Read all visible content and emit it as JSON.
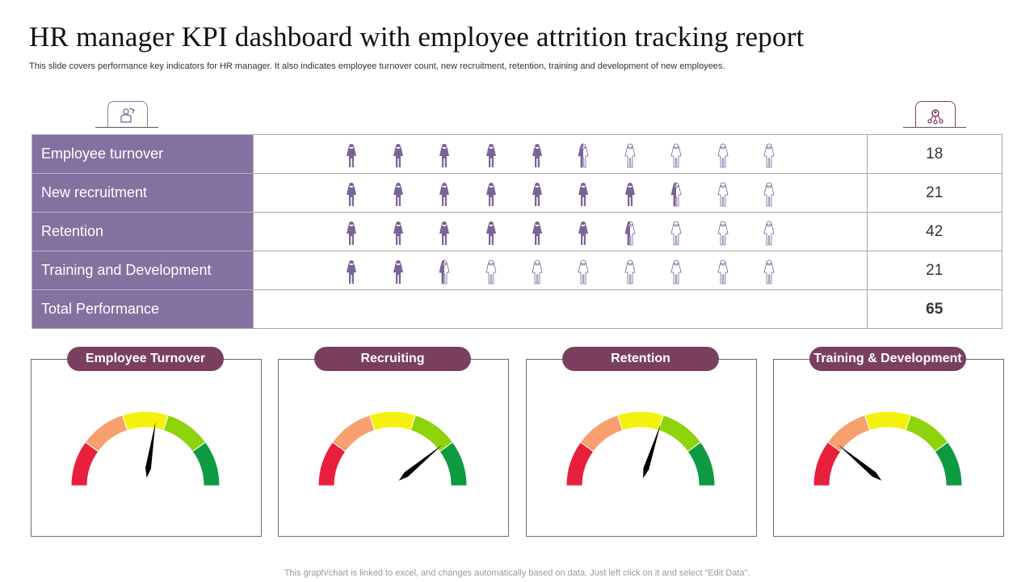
{
  "title": "HR manager KPI dashboard with employee attrition tracking report",
  "subtitle": "This slide covers performance key indicators for HR manager. It also indicates employee turnover count, new recruitment, retention, training and development of new employees.",
  "icons": {
    "left": "employee-badge-icon",
    "right": "team-network-icon"
  },
  "colors": {
    "label_bg": "#83719f",
    "figure_fill": "#7a6497",
    "pill_bg": "#7a3f5f"
  },
  "rows": [
    {
      "label": "Employee turnover",
      "value": "18",
      "filled": 5.5
    },
    {
      "label": "New recruitment",
      "value": "21",
      "filled": 7.5
    },
    {
      "label": "Retention",
      "value": "42",
      "filled": 6.5
    },
    {
      "label": "Training and Development",
      "value": "21",
      "filled": 2.5
    }
  ],
  "total": {
    "label": "Total Performance",
    "value": "65"
  },
  "figures_per_row": 10,
  "gauges": [
    {
      "title": "Employee Turnover",
      "level": 0.55
    },
    {
      "title": "Recruiting",
      "level": 0.78
    },
    {
      "title": "Retention",
      "level": 0.6
    },
    {
      "title": "Training & Development",
      "level": 0.22
    }
  ],
  "gauge_zone_colors": [
    "#e8203c",
    "#f79f6e",
    "#f5f10f",
    "#8ed30c",
    "#0e9a41"
  ],
  "footer": "This graph/chart is linked to excel, and changes automatically based on data. Just left click on it and select “Edit Data”."
}
